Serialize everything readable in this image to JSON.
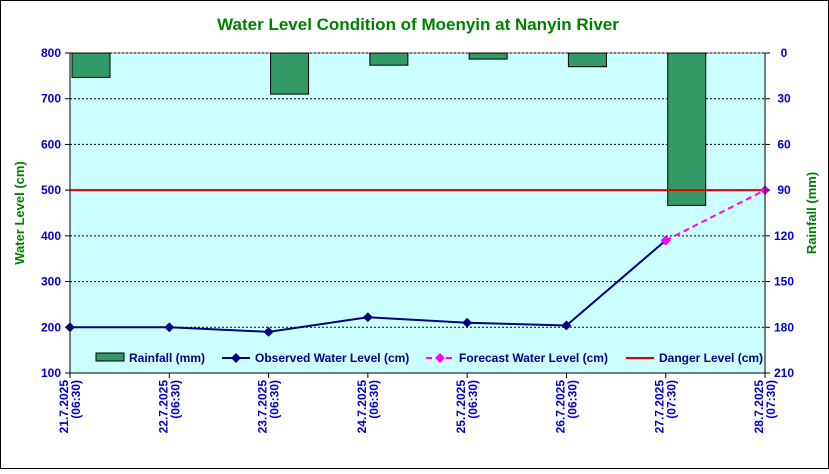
{
  "chart_data": {
    "type": "line",
    "title": "Water Level Condition of Moenyin at Nanyin River",
    "ylabel": "Water Level (cm)",
    "y2label": "Rainfall (mm)",
    "categories": [
      [
        "21.7.2025",
        "(06:30)"
      ],
      [
        "22.7.2025",
        "(06:30)"
      ],
      [
        "23.7.2025",
        "(06:30)"
      ],
      [
        "24.7.2025",
        "(06:30)"
      ],
      [
        "25.7.2025",
        "(06:30)"
      ],
      [
        "26.7.2025",
        "(06:30)"
      ],
      [
        "27.7.2025",
        "(07:30)"
      ],
      [
        "28.7.2025",
        "(07:30)"
      ]
    ],
    "ylim": [
      100,
      800
    ],
    "yticks": [
      100,
      200,
      300,
      400,
      500,
      600,
      700,
      800
    ],
    "y2lim": [
      0,
      210
    ],
    "y2ticks": [
      0,
      30,
      60,
      90,
      120,
      150,
      180,
      210
    ],
    "y2_inverted": true,
    "grid": true,
    "legend_position": "bottom",
    "series": [
      {
        "name": "Rainfall (mm)",
        "kind": "bar",
        "axis": "right",
        "color": "#339966",
        "values": [
          16,
          0,
          27,
          8,
          4,
          9,
          100,
          0
        ]
      },
      {
        "name": "Observed Water Level (cm)",
        "kind": "line",
        "axis": "left",
        "color": "#000080",
        "values": [
          200,
          200,
          190,
          222,
          210,
          204,
          390,
          null
        ]
      },
      {
        "name": "Forecast Water Level (cm)",
        "kind": "dashed-line",
        "axis": "left",
        "color": "#ff00ff",
        "values": [
          null,
          null,
          null,
          null,
          null,
          null,
          390,
          500
        ]
      },
      {
        "name": "Danger Level (cm)",
        "kind": "line",
        "axis": "left",
        "color": "#e60000",
        "values": [
          500,
          500,
          500,
          500,
          500,
          500,
          500,
          500
        ]
      }
    ],
    "colors": {
      "plot_background": "#ccffff",
      "title": "#008000",
      "axis_label": "#008000",
      "tick_label": "#0000cc",
      "legend_text": "#000080"
    }
  }
}
